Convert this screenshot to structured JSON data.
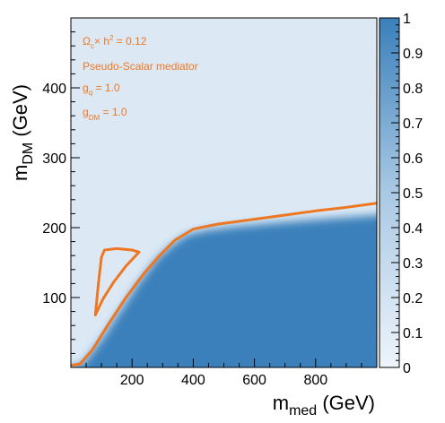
{
  "chart_data": {
    "type": "heatmap",
    "xlabel_main": "m",
    "xlabel_sub": "med",
    "xlabel_unit": " (GeV)",
    "ylabel_main": "m",
    "ylabel_sub": "DM",
    "ylabel_unit": " (GeV)",
    "xlim": [
      0,
      1000
    ],
    "ylim": [
      0,
      500
    ],
    "zlim": [
      0,
      1
    ],
    "x_ticks": [
      200,
      400,
      600,
      800
    ],
    "y_ticks": [
      100,
      200,
      300,
      400
    ],
    "z_ticks": [
      0,
      0.1,
      0.2,
      0.3,
      0.4,
      0.5,
      0.6,
      0.7,
      0.8,
      0.9,
      1
    ],
    "x_tick_labels": [
      "200",
      "400",
      "600",
      "800"
    ],
    "y_tick_labels": [
      "100",
      "200",
      "300",
      "400"
    ],
    "z_tick_labels": [
      "0",
      "0.1",
      "0.2",
      "0.3",
      "0.4",
      "0.5",
      "0.6",
      "0.7",
      "0.8",
      "0.9",
      "1"
    ],
    "colors": {
      "low": "#dce9f5",
      "high": "#3a80bb",
      "contour": "#ee7722"
    },
    "annotations": {
      "relic_omega": "Ω",
      "relic_omega_sub": "c",
      "relic_rest": "× h",
      "relic_sup": "2",
      "relic_value": " = 0.12",
      "mediator": "Pseudo-Scalar mediator",
      "gq_main": "g",
      "gq_sub": "q",
      "gq_value": " = 1.0",
      "gdm_main": "g",
      "gdm_sub": "DM",
      "gdm_value": " = 1.0"
    },
    "contour_main": [
      [
        0,
        3
      ],
      [
        30,
        5
      ],
      [
        70,
        25
      ],
      [
        120,
        60
      ],
      [
        180,
        100
      ],
      [
        240,
        135
      ],
      [
        290,
        160
      ],
      [
        340,
        182
      ],
      [
        400,
        198
      ],
      [
        480,
        205
      ],
      [
        600,
        212
      ],
      [
        700,
        218
      ],
      [
        800,
        224
      ],
      [
        900,
        229
      ],
      [
        1000,
        235
      ]
    ],
    "contour_island": [
      [
        80,
        75
      ],
      [
        105,
        98
      ],
      [
        140,
        122
      ],
      [
        180,
        145
      ],
      [
        223,
        165
      ],
      [
        200,
        168
      ],
      [
        150,
        170
      ],
      [
        110,
        168
      ],
      [
        100,
        158
      ],
      [
        90,
        120
      ],
      [
        80,
        75
      ]
    ],
    "saturated_boundary": [
      [
        0,
        0
      ],
      [
        40,
        5
      ],
      [
        100,
        40
      ],
      [
        160,
        80
      ],
      [
        220,
        120
      ],
      [
        280,
        155
      ],
      [
        330,
        175
      ],
      [
        380,
        190
      ],
      [
        450,
        197
      ],
      [
        550,
        202
      ],
      [
        700,
        208
      ],
      [
        850,
        213
      ],
      [
        1000,
        218
      ]
    ]
  }
}
